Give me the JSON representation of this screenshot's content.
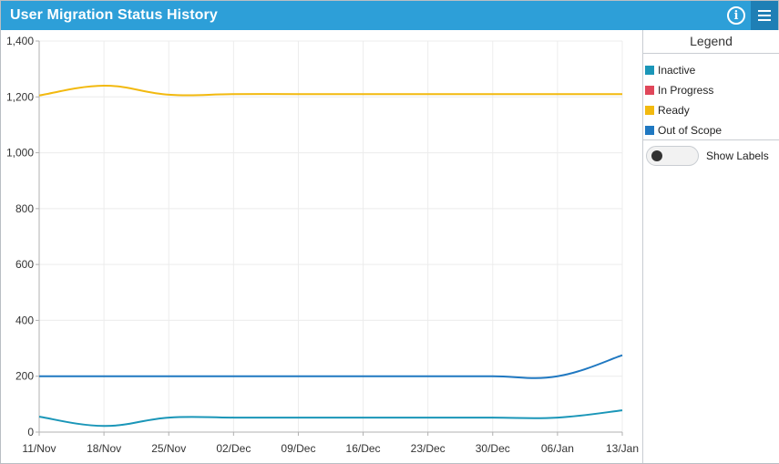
{
  "header": {
    "title": "User Migration Status History",
    "info_icon": "info-icon",
    "menu_icon": "hamburger-menu-icon"
  },
  "legend": {
    "title": "Legend",
    "items": [
      {
        "label": "Inactive",
        "color": "#1a96b8"
      },
      {
        "label": "In Progress",
        "color": "#e0475a"
      },
      {
        "label": "Ready",
        "color": "#f2b90f"
      },
      {
        "label": "Out of Scope",
        "color": "#1f78c1"
      }
    ],
    "show_labels": {
      "label": "Show Labels",
      "enabled": false
    }
  },
  "chart_data": {
    "type": "line",
    "x": [
      "11/Nov",
      "18/Nov",
      "25/Nov",
      "02/Dec",
      "09/Dec",
      "16/Dec",
      "23/Dec",
      "30/Dec",
      "06/Jan",
      "13/Jan"
    ],
    "ylim": [
      0,
      1400
    ],
    "yticks": [
      0,
      200,
      400,
      600,
      800,
      1000,
      1200,
      1400
    ],
    "ytick_labels": [
      "0",
      "200",
      "400",
      "600",
      "800",
      "1,000",
      "1,200",
      "1,400"
    ],
    "grid": true,
    "legend_position": "right",
    "series": [
      {
        "name": "Inactive",
        "color": "#1a96b8",
        "values": [
          55,
          22,
          52,
          52,
          52,
          52,
          52,
          52,
          52,
          78
        ]
      },
      {
        "name": "In Progress",
        "color": "#e0475a",
        "values": [
          0,
          0,
          0,
          0,
          0,
          0,
          0,
          0,
          0,
          0
        ]
      },
      {
        "name": "Ready",
        "color": "#f2b90f",
        "values": [
          1205,
          1240,
          1208,
          1210,
          1210,
          1210,
          1210,
          1210,
          1210,
          1210
        ]
      },
      {
        "name": "Out of Scope",
        "color": "#1f78c1",
        "values": [
          200,
          200,
          200,
          200,
          200,
          200,
          200,
          200,
          200,
          275
        ]
      }
    ]
  }
}
